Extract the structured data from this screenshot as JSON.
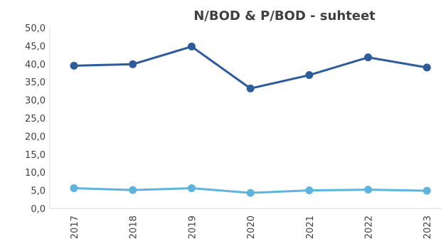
{
  "chart_data": {
    "type": "line",
    "title": "N/BOD & P/BOD - suhteet",
    "xlabel": "",
    "ylabel": "",
    "categories": [
      "2017",
      "2018",
      "2019",
      "2020",
      "2021",
      "2022",
      "2023"
    ],
    "ylim": [
      0,
      50
    ],
    "yticks": [
      "0,0",
      "5,0",
      "10,0",
      "15,0",
      "20,0",
      "25,0",
      "30,0",
      "35,0",
      "40,0",
      "45,0",
      "50,0"
    ],
    "grid": false,
    "legend": "none",
    "series": [
      {
        "color": "#2e5c9a",
        "values": [
          39.5,
          39.9,
          44.8,
          33.2,
          36.9,
          41.8,
          39.0
        ]
      },
      {
        "color": "#5fb4de",
        "values": [
          5.6,
          5.1,
          5.6,
          4.3,
          5.0,
          5.2,
          4.9
        ]
      }
    ]
  }
}
